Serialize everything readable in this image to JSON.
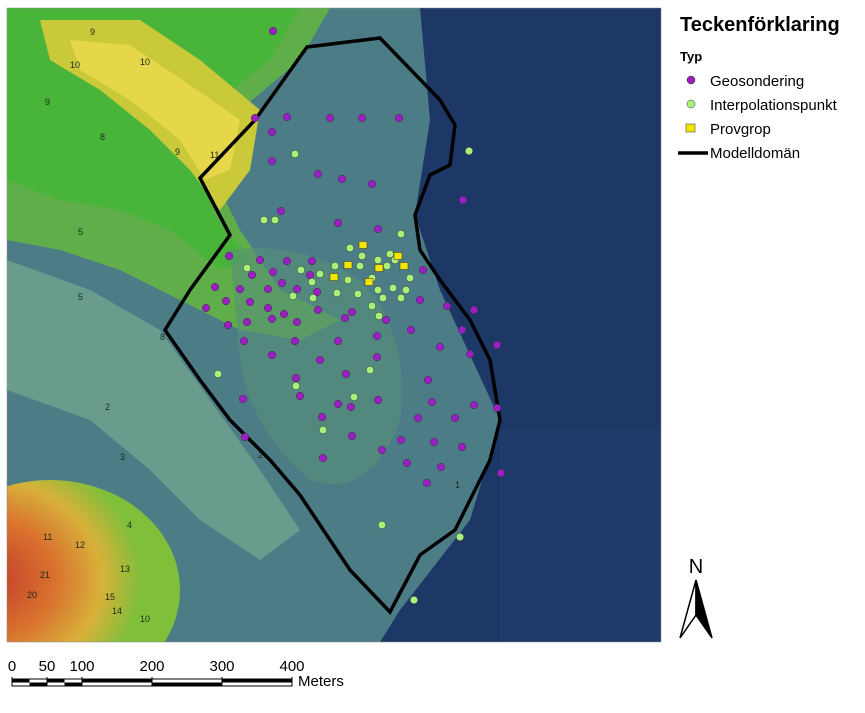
{
  "legend": {
    "title": "Teckenförklaring",
    "group": "Typ",
    "items": [
      "Geosondering",
      "Interpolationspunkt",
      "Provgrop",
      "Modelldomän"
    ]
  },
  "north": "N",
  "scale_bar": {
    "ticks": [
      0,
      50,
      100,
      200,
      300,
      400
    ],
    "unit": "Meters"
  },
  "contour_labels": [
    "9",
    "10",
    "10",
    "9",
    "8",
    "9",
    "11",
    "5",
    "5",
    "8",
    "2",
    "3",
    "11",
    "12",
    "21",
    "20",
    "15",
    "13",
    "14",
    "10",
    "4",
    "2",
    "1"
  ]
}
